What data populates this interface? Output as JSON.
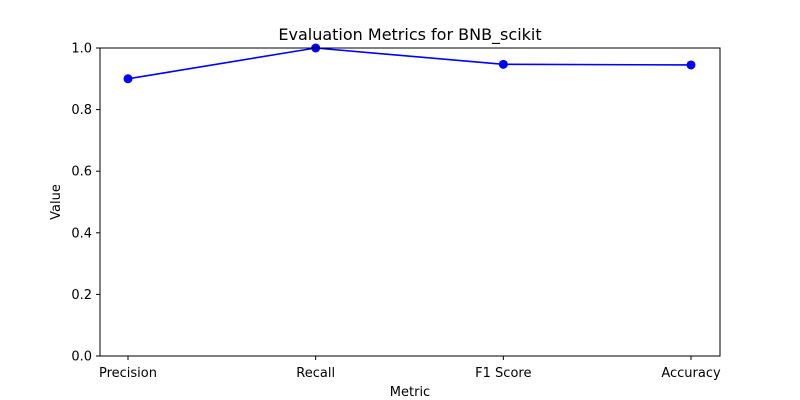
{
  "chart_data": {
    "type": "line",
    "title": "Evaluation Metrics for BNB_scikit",
    "xlabel": "Metric",
    "ylabel": "Value",
    "categories": [
      "Precision",
      "Recall",
      "F1 Score",
      "Accuracy"
    ],
    "series": [
      {
        "name": "BNB_scikit",
        "values": [
          0.9,
          1.0,
          0.947,
          0.945
        ],
        "color": "#0000ff",
        "marker": "circle"
      }
    ],
    "ylim": [
      0.0,
      1.0
    ],
    "yticks": [
      0.0,
      0.2,
      0.4,
      0.6,
      0.8,
      1.0
    ],
    "ytick_labels": [
      "0.0",
      "0.2",
      "0.4",
      "0.6",
      "0.8",
      "1.0"
    ],
    "grid": false,
    "legend": "none"
  }
}
